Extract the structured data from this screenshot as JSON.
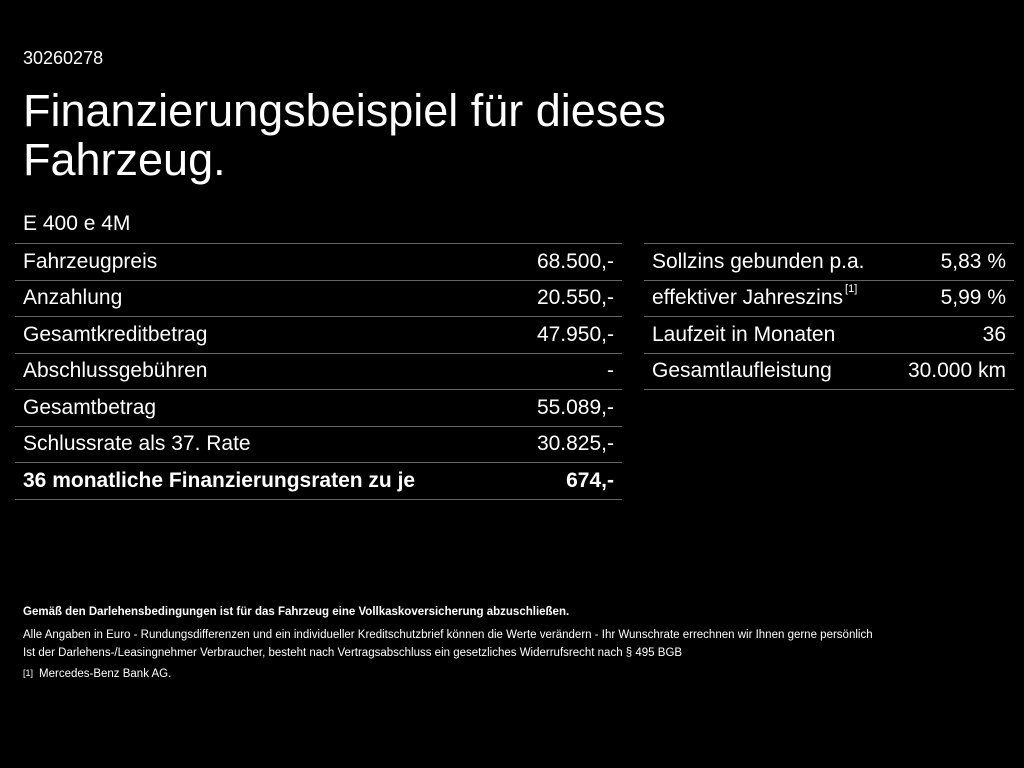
{
  "header": {
    "code": "30260278",
    "title_line1": "Finanzierungsbeispiel für dieses",
    "title_line2": "Fahrzeug.",
    "model": "E 400 e 4M"
  },
  "left_table": [
    {
      "label": "Fahrzeugpreis",
      "value": "68.500,-"
    },
    {
      "label": "Anzahlung",
      "value": "20.550,-"
    },
    {
      "label": "Gesamtkreditbetrag",
      "value": "47.950,-"
    },
    {
      "label": "Abschlussgebühren",
      "value": "-"
    },
    {
      "label": "Gesamtbetrag",
      "value": "55.089,-"
    },
    {
      "label": "Schlussrate als 37. Rate",
      "value": "30.825,-"
    },
    {
      "label": "36 monatliche Finanzierungsraten zu je",
      "value": "674,-"
    }
  ],
  "right_table": [
    {
      "label": "Sollzins gebunden p.a.",
      "value": "5,83 %"
    },
    {
      "label": "effektiver Jahreszins",
      "sup": "[1]",
      "value": "5,99 %"
    },
    {
      "label": "Laufzeit in Monaten",
      "value": "36"
    },
    {
      "label": "Gesamtlaufleistung",
      "value": "30.000 km"
    }
  ],
  "notes": {
    "bold": "Gemäß den Darlehensbedingungen ist für das Fahrzeug eine Vollkaskoversicherung abzuschließen.",
    "line1": "Alle Angaben in Euro - Rundungsdifferenzen und ein individueller Kreditschutzbrief können die Werte verändern - Ihr Wunschrate errechnen wir Ihnen gerne persönlich",
    "line2": "Ist der Darlehens-/Leasingnehmer Verbraucher, besteht nach Vertragsabschluss ein gesetzliches Widerrufsrecht nach § 495 BGB",
    "footnote_mark": "[1]",
    "footnote_text": "Mercedes-Benz Bank AG."
  }
}
